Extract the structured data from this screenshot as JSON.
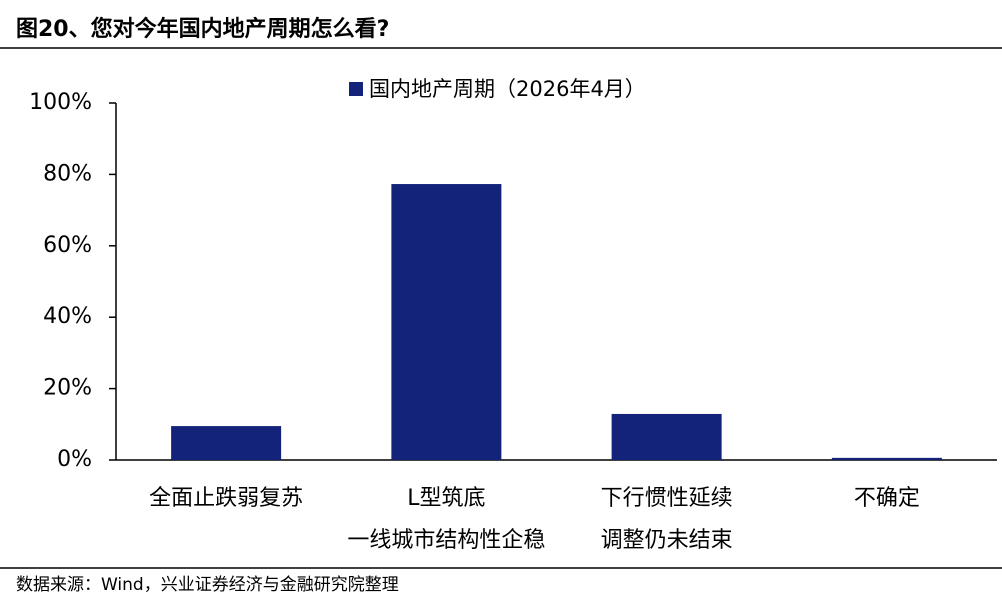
{
  "chart_data": {
    "type": "bar",
    "title": "图20、您对今年国内地产周期怎么看?",
    "source": "数据来源：Wind，兴业证券经济与金融研究院整理",
    "categories": [
      [
        "全面止跌弱复苏"
      ],
      [
        "L型筑底",
        "一线城市结构性企稳"
      ],
      [
        "下行惯性延续",
        "调整仍未结束"
      ],
      [
        "不确定"
      ]
    ],
    "series": [
      {
        "name": "国内地产周期（2026年4月）",
        "color": "#13237a",
        "values": [
          9.5,
          77.3,
          12.9,
          0.6
        ]
      }
    ],
    "ylim": [
      0,
      100
    ],
    "yticks": [
      {
        "value": 0,
        "label": "0%"
      },
      {
        "value": 20,
        "label": "20%"
      },
      {
        "value": 40,
        "label": "40%"
      },
      {
        "value": 60,
        "label": "60%"
      },
      {
        "value": 80,
        "label": "80%"
      },
      {
        "value": 100,
        "label": "100%"
      }
    ],
    "legend": "top"
  }
}
